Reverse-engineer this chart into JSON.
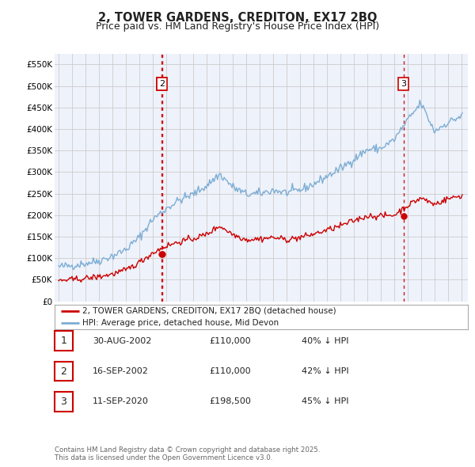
{
  "title1": "2, TOWER GARDENS, CREDITON, EX17 2BQ",
  "title2": "Price paid vs. HM Land Registry's House Price Index (HPI)",
  "legend_line1": "2, TOWER GARDENS, CREDITON, EX17 2BQ (detached house)",
  "legend_line2": "HPI: Average price, detached house, Mid Devon",
  "footnote": "Contains HM Land Registry data © Crown copyright and database right 2025.\nThis data is licensed under the Open Government Licence v3.0.",
  "sales": [
    {
      "num": 1,
      "date": "30-AUG-2002",
      "date_dec": 2002.66,
      "price": 110000,
      "price_str": "£110,000",
      "pct": "40% ↓ HPI"
    },
    {
      "num": 2,
      "date": "16-SEP-2002",
      "date_dec": 2002.71,
      "price": 110000,
      "price_str": "£110,000",
      "pct": "42% ↓ HPI"
    },
    {
      "num": 3,
      "date": "11-SEP-2020",
      "date_dec": 2020.7,
      "price": 198500,
      "price_str": "£198,500",
      "pct": "45% ↓ HPI"
    }
  ],
  "ylim": [
    0,
    575000
  ],
  "xlim": [
    1994.7,
    2025.5
  ],
  "yticks": [
    0,
    50000,
    100000,
    150000,
    200000,
    250000,
    300000,
    350000,
    400000,
    450000,
    500000,
    550000
  ],
  "ytick_labels": [
    "£0",
    "£50K",
    "£100K",
    "£150K",
    "£200K",
    "£250K",
    "£300K",
    "£350K",
    "£400K",
    "£450K",
    "£500K",
    "£550K"
  ],
  "red_line_color": "#cc0000",
  "blue_line_color": "#7dadd4",
  "grid_color": "#cccccc",
  "bg_color": "#eef2fb",
  "hpi_anchors_x": [
    1995,
    1996,
    1997,
    1998,
    1999,
    2000,
    2001,
    2002,
    2003,
    2004,
    2005,
    2006,
    2007,
    2008,
    2009,
    2010,
    2011,
    2012,
    2013,
    2014,
    2015,
    2016,
    2017,
    2018,
    2019,
    2020,
    2021,
    2022,
    2023,
    2024,
    2025
  ],
  "hpi_anchors_y": [
    80000,
    83000,
    88000,
    94000,
    105000,
    120000,
    148000,
    190000,
    215000,
    235000,
    248000,
    268000,
    295000,
    265000,
    248000,
    250000,
    258000,
    252000,
    258000,
    272000,
    290000,
    308000,
    330000,
    352000,
    355000,
    375000,
    420000,
    460000,
    395000,
    415000,
    430000
  ],
  "red_anchors_x": [
    1995,
    1996,
    1997,
    1998,
    1999,
    2000,
    2001,
    2002,
    2003,
    2004,
    2005,
    2006,
    2007,
    2008,
    2009,
    2010,
    2011,
    2012,
    2013,
    2014,
    2015,
    2016,
    2017,
    2018,
    2019,
    2020,
    2021,
    2022,
    2023,
    2024,
    2025
  ],
  "red_anchors_y": [
    48000,
    50000,
    53000,
    57000,
    63000,
    72000,
    90000,
    112000,
    128000,
    138000,
    145000,
    155000,
    175000,
    155000,
    143000,
    145000,
    148000,
    143000,
    148000,
    156000,
    165000,
    175000,
    187000,
    198000,
    198000,
    200000,
    222000,
    240000,
    225000,
    238000,
    245000
  ]
}
